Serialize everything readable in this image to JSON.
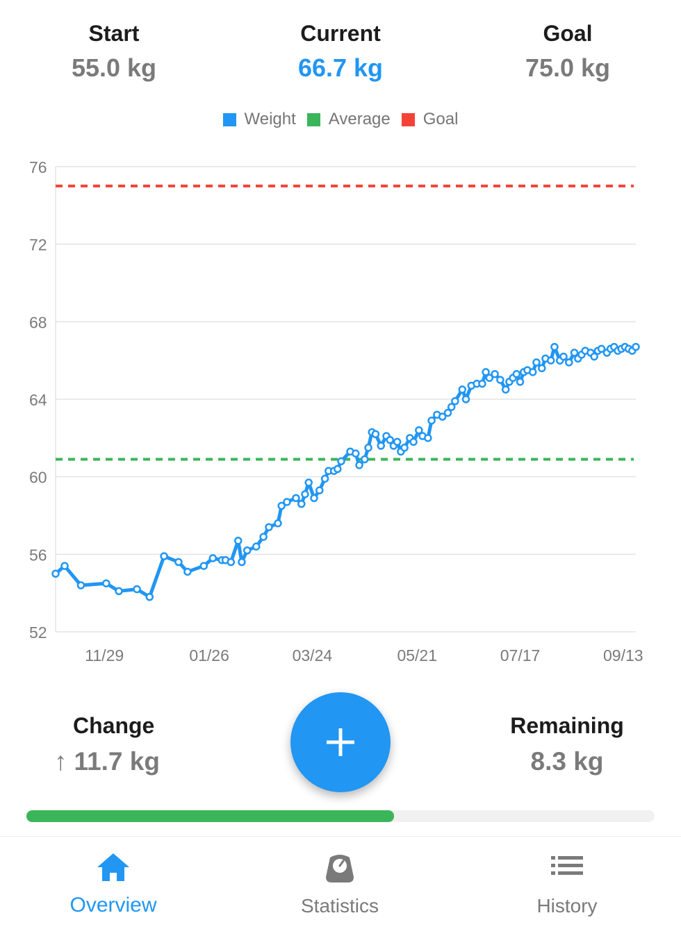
{
  "summary": {
    "start": {
      "label": "Start",
      "value": "55.0 kg"
    },
    "current": {
      "label": "Current",
      "value": "66.7 kg"
    },
    "goal": {
      "label": "Goal",
      "value": "75.0 kg"
    }
  },
  "legend": [
    {
      "label": "Weight",
      "color": "#2196f3"
    },
    {
      "label": "Average",
      "color": "#3bb55a"
    },
    {
      "label": "Goal",
      "color": "#f44336"
    }
  ],
  "chart_data": {
    "type": "line",
    "title": "",
    "xlabel": "",
    "ylabel": "",
    "ylim": [
      52,
      76
    ],
    "y_ticks": [
      76,
      72,
      68,
      64,
      60,
      56,
      52
    ],
    "x_ticks": [
      "11/29",
      "01/26",
      "03/24",
      "05/21",
      "07/17",
      "09/13"
    ],
    "x_tick_days": [
      66,
      124,
      181,
      239,
      296,
      353
    ],
    "x_range_days": [
      39,
      360
    ],
    "grid": true,
    "legend_position": "top",
    "goal_line": 75.0,
    "average_line": 60.9,
    "series": [
      {
        "name": "Weight",
        "x": [
          39,
          44,
          53,
          67,
          74,
          84,
          91,
          99,
          107,
          112,
          121,
          126,
          131,
          133,
          136,
          140,
          142,
          145,
          150,
          154,
          157,
          162,
          164,
          167,
          172,
          175,
          177,
          179,
          182,
          185,
          188,
          190,
          193,
          195,
          197,
          202,
          205,
          207,
          210,
          212,
          214,
          216,
          219,
          222,
          224,
          226,
          228,
          230,
          232,
          235,
          237,
          240,
          242,
          245,
          247,
          250,
          253,
          256,
          258,
          260,
          264,
          266,
          269,
          272,
          275,
          277,
          279,
          282,
          285,
          288,
          290,
          292,
          294,
          296,
          298,
          300,
          303,
          305,
          308,
          310,
          313,
          315,
          318,
          320,
          323,
          326,
          328,
          330,
          332,
          335,
          337,
          339,
          341,
          344,
          346,
          348,
          350,
          352,
          354,
          356,
          358,
          360
        ],
        "y": [
          55.0,
          55.4,
          54.4,
          54.5,
          54.1,
          54.2,
          53.8,
          55.9,
          55.6,
          55.1,
          55.4,
          55.8,
          55.7,
          55.7,
          55.6,
          56.7,
          55.6,
          56.2,
          56.4,
          56.9,
          57.4,
          57.6,
          58.5,
          58.7,
          58.9,
          58.6,
          59.1,
          59.7,
          58.9,
          59.3,
          59.9,
          60.3,
          60.3,
          60.4,
          60.8,
          61.3,
          61.2,
          60.6,
          60.9,
          61.5,
          62.3,
          62.2,
          61.6,
          62.1,
          61.9,
          61.6,
          61.8,
          61.3,
          61.5,
          62.0,
          61.8,
          62.4,
          62.1,
          62.0,
          62.9,
          63.2,
          63.1,
          63.3,
          63.6,
          63.9,
          64.5,
          64.0,
          64.7,
          64.8,
          64.8,
          65.4,
          65.1,
          65.3,
          65.0,
          64.5,
          64.9,
          65.1,
          65.3,
          64.9,
          65.4,
          65.5,
          65.4,
          65.9,
          65.6,
          66.1,
          66.0,
          66.7,
          66.0,
          66.2,
          65.9,
          66.4,
          66.1,
          66.3,
          66.5,
          66.4,
          66.2,
          66.5,
          66.6,
          66.4,
          66.6,
          66.7,
          66.5,
          66.6,
          66.7,
          66.6,
          66.5,
          66.7
        ]
      }
    ]
  },
  "change": {
    "label": "Change",
    "arrow": "↑",
    "value": "11.7 kg"
  },
  "remaining": {
    "label": "Remaining",
    "value": "8.3 kg"
  },
  "progress": {
    "fraction": 0.585,
    "fill_color": "#3bb55a"
  },
  "nav": {
    "items": [
      {
        "label": "Overview",
        "icon": "home-icon",
        "active": true
      },
      {
        "label": "Statistics",
        "icon": "scale-icon",
        "active": false
      },
      {
        "label": "History",
        "icon": "list-icon",
        "active": false
      }
    ]
  }
}
